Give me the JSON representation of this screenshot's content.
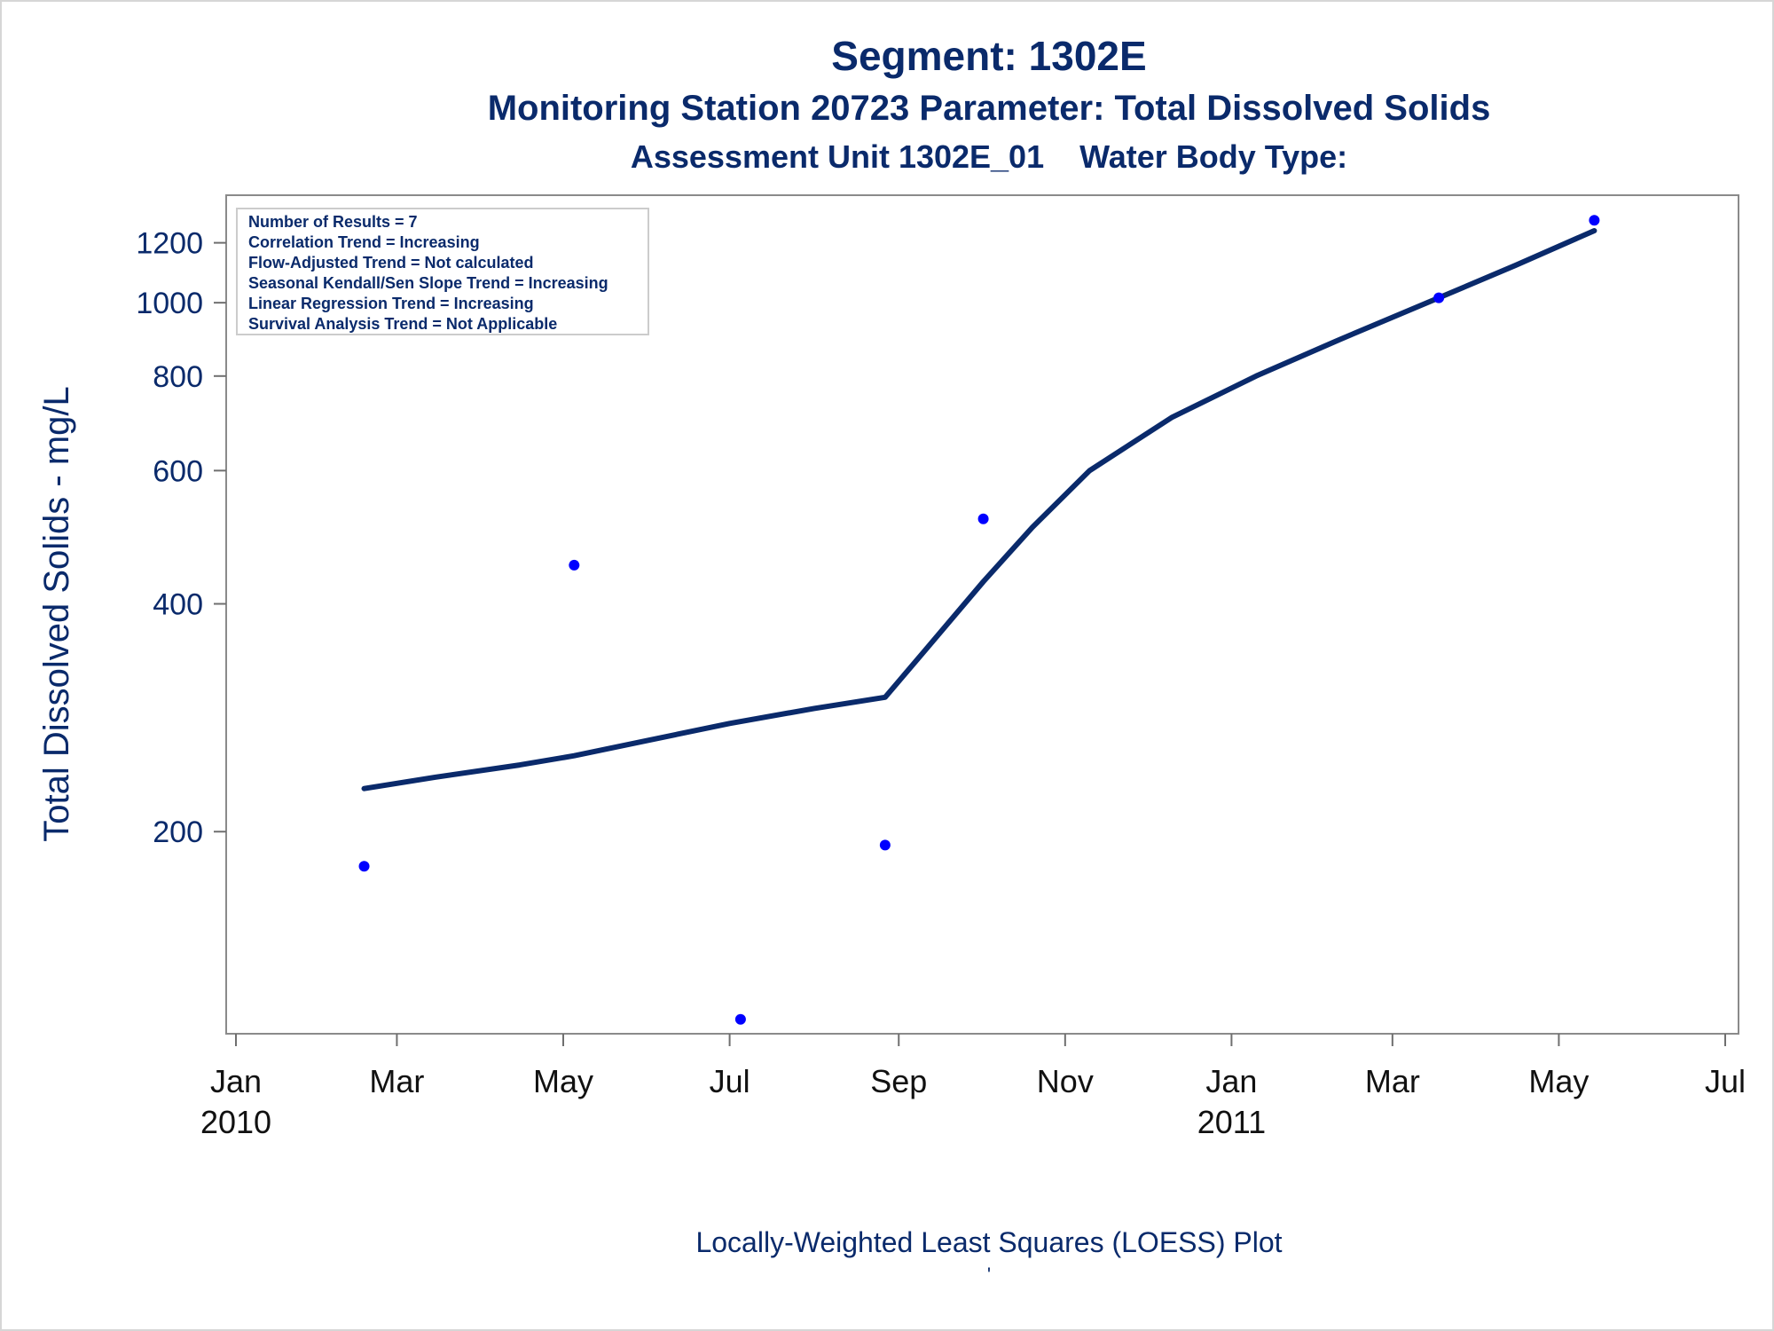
{
  "chart_data": {
    "type": "scatter",
    "title": "Segment: 1302E",
    "subtitle": "Monitoring Station 20723 Parameter: Total Dissolved Solids",
    "subtitle2": "Assessment Unit 1302E_01    Water Body Type:",
    "xlabel": "",
    "ylabel": "Total Dissolved Solids - mg/L",
    "y_scale": "log",
    "ylim": [
      112,
      1350
    ],
    "xlim": [
      "2010-01-01",
      "2011-07-01"
    ],
    "x_ticks": [
      {
        "date": "2010-01-01",
        "label": "Jan",
        "year": "2010"
      },
      {
        "date": "2010-03-01",
        "label": "Mar",
        "year": ""
      },
      {
        "date": "2010-05-01",
        "label": "May",
        "year": ""
      },
      {
        "date": "2010-07-01",
        "label": "Jul",
        "year": ""
      },
      {
        "date": "2010-09-01",
        "label": "Sep",
        "year": ""
      },
      {
        "date": "2010-11-01",
        "label": "Nov",
        "year": ""
      },
      {
        "date": "2011-01-01",
        "label": "Jan",
        "year": "2011"
      },
      {
        "date": "2011-03-01",
        "label": "Mar",
        "year": ""
      },
      {
        "date": "2011-05-01",
        "label": "May",
        "year": ""
      },
      {
        "date": "2011-07-01",
        "label": "Jul",
        "year": ""
      }
    ],
    "y_ticks": [
      200,
      400,
      600,
      800,
      1000,
      1200
    ],
    "grid": false,
    "series": [
      {
        "kind": "points",
        "color": "#0000ff",
        "points": [
          {
            "x": "2010-02-17",
            "y": 180
          },
          {
            "x": "2010-05-05",
            "y": 450
          },
          {
            "x": "2010-07-05",
            "y": 113
          },
          {
            "x": "2010-08-27",
            "y": 192
          },
          {
            "x": "2010-10-02",
            "y": 518
          },
          {
            "x": "2011-03-18",
            "y": 1015
          },
          {
            "x": "2011-05-14",
            "y": 1285
          }
        ]
      },
      {
        "kind": "loess",
        "color": "#0a2a6b",
        "points": [
          {
            "x": "2010-02-17",
            "y": 228
          },
          {
            "x": "2010-03-15",
            "y": 236
          },
          {
            "x": "2010-04-15",
            "y": 245
          },
          {
            "x": "2010-05-05",
            "y": 252
          },
          {
            "x": "2010-06-01",
            "y": 264
          },
          {
            "x": "2010-07-01",
            "y": 278
          },
          {
            "x": "2010-08-01",
            "y": 291
          },
          {
            "x": "2010-08-27",
            "y": 301
          },
          {
            "x": "2010-09-10",
            "y": 345
          },
          {
            "x": "2010-10-02",
            "y": 428
          },
          {
            "x": "2010-10-20",
            "y": 505
          },
          {
            "x": "2010-11-10",
            "y": 600
          },
          {
            "x": "2010-12-10",
            "y": 705
          },
          {
            "x": "2011-01-10",
            "y": 800
          },
          {
            "x": "2011-02-10",
            "y": 895
          },
          {
            "x": "2011-03-18",
            "y": 1015
          },
          {
            "x": "2011-04-15",
            "y": 1120
          },
          {
            "x": "2011-05-14",
            "y": 1245
          }
        ]
      }
    ],
    "annotations": [
      "Number of Results = 7",
      "Correlation Trend = Increasing",
      "Flow-Adjusted Trend = Not calculated",
      "Seasonal Kendall/Sen Slope Trend = Increasing",
      "Linear Regression Trend = Increasing",
      "Survival Analysis Trend = Not Applicable"
    ],
    "legend_position": "top-left"
  },
  "footer": {
    "note": "Locally-Weighted Least Squares (LOESS) Plot",
    "mark": "'"
  }
}
